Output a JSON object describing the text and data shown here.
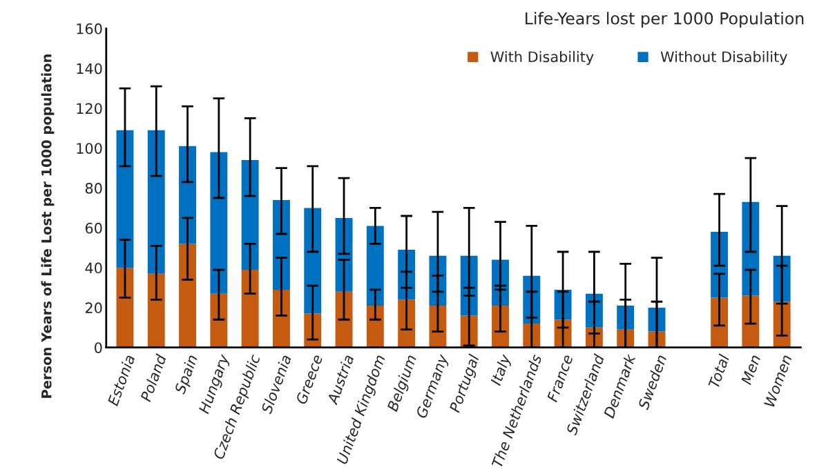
{
  "chart_data": {
    "type": "bar",
    "stacked": true,
    "title": "Life-Years lost per 1000 Population",
    "ylabel": "Person Years of Life Lost per 1000 population",
    "categories": [
      "Estonia",
      "Poland",
      "Spain",
      "Hungary",
      "Czech Republic",
      "Slovenia",
      "Greece",
      "Austria",
      "United Kingdom",
      "Belgium",
      "Germany",
      "Portugal",
      "Italy",
      "The Netherlands",
      "France",
      "Switzerland",
      "Denmark",
      "Sweden",
      null,
      "Total",
      "Men",
      "Women"
    ],
    "series": [
      {
        "name": "With Disability",
        "color": "#c55a11",
        "values": [
          40,
          37,
          52,
          27,
          39,
          29,
          17,
          28,
          21,
          24,
          21,
          16,
          21,
          12,
          14,
          10,
          9,
          8,
          null,
          25,
          26,
          23
        ],
        "errors": [
          [
            25,
            54
          ],
          [
            24,
            51
          ],
          [
            34,
            65
          ],
          [
            14,
            39
          ],
          [
            27,
            52
          ],
          [
            16,
            45
          ],
          [
            4,
            31
          ],
          [
            14,
            44
          ],
          [
            14,
            29
          ],
          [
            9,
            38
          ],
          [
            8,
            36
          ],
          [
            1,
            30
          ],
          [
            8,
            31
          ],
          [
            0,
            28
          ],
          [
            0,
            28
          ],
          [
            0,
            23
          ],
          [
            0,
            24
          ],
          [
            0,
            23
          ],
          null,
          [
            11,
            37
          ],
          [
            12,
            39
          ],
          [
            6,
            41
          ]
        ]
      },
      {
        "name": "Without Disability",
        "color": "#0070c0",
        "values": [
          69,
          72,
          49,
          71,
          55,
          45,
          53,
          37,
          40,
          25,
          25,
          30,
          23,
          24,
          15,
          17,
          12,
          12,
          null,
          33,
          47,
          23
        ],
        "errors": [
          [
            91,
            130
          ],
          [
            86,
            131
          ],
          [
            83,
            121
          ],
          [
            75,
            125
          ],
          [
            76,
            115
          ],
          [
            57,
            90
          ],
          [
            48,
            91
          ],
          [
            47,
            85
          ],
          [
            52,
            70
          ],
          [
            30,
            66
          ],
          [
            28,
            68
          ],
          [
            26,
            70
          ],
          [
            29,
            63
          ],
          [
            15,
            61
          ],
          [
            10,
            48
          ],
          [
            7,
            48
          ],
          [
            0,
            42
          ],
          [
            0,
            45
          ],
          null,
          [
            41,
            77
          ],
          [
            48,
            95
          ],
          [
            22,
            71
          ]
        ]
      }
    ],
    "ylim": [
      0,
      160
    ],
    "yticks": [
      0,
      20,
      40,
      60,
      80,
      100,
      120,
      140,
      160
    ],
    "legend": "top right",
    "grid": false
  }
}
